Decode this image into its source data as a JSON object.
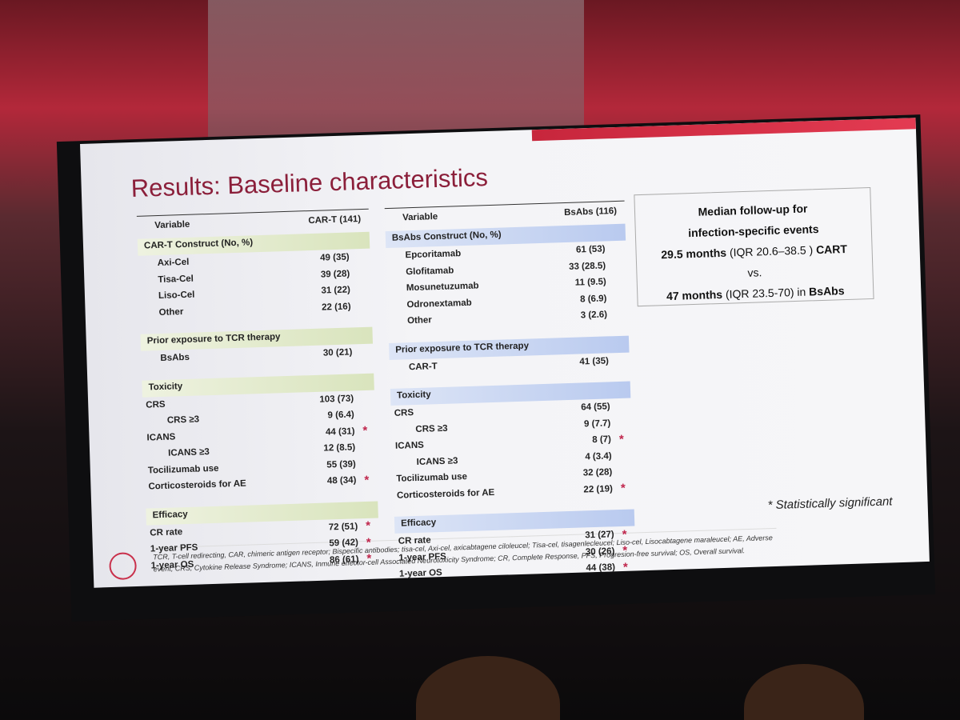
{
  "title": "Results: Baseline characteristics",
  "cart_table": {
    "header": {
      "variable": "Variable",
      "group": "CAR-T (141)"
    },
    "sections": [
      {
        "heading": "CAR-T Construct (No, %)",
        "rows": [
          {
            "label": "Axi-Cel",
            "value": "49 (35)"
          },
          {
            "label": "Tisa-Cel",
            "value": "39 (28)"
          },
          {
            "label": "Liso-Cel",
            "value": "31 (22)"
          },
          {
            "label": "Other",
            "value": "22 (16)"
          }
        ]
      },
      {
        "heading": "Prior exposure to TCR therapy",
        "rows": [
          {
            "label": "BsAbs",
            "value": "30 (21)"
          }
        ]
      },
      {
        "heading": "Toxicity",
        "rows": [
          {
            "label": "CRS",
            "value": "103 (73)",
            "sub": [
              {
                "label": "CRS ≥3",
                "value": "9 (6.4)"
              }
            ]
          },
          {
            "label": "ICANS",
            "value": "44 (31)",
            "mark": "*",
            "sub": [
              {
                "label": "ICANS ≥3",
                "value": "12 (8.5)"
              }
            ]
          },
          {
            "label": "Tocilizumab use",
            "value": "55 (39)"
          },
          {
            "label": "Corticosteroids for AE",
            "value": "48 (34)",
            "mark": "*"
          }
        ]
      },
      {
        "heading": "Efficacy",
        "rows": [
          {
            "label": "CR rate",
            "value": "72 (51)",
            "mark": "*"
          },
          {
            "label": "1-year PFS",
            "value": "59 (42)",
            "mark": "*"
          },
          {
            "label": "1-year OS",
            "value": "86 (61)",
            "mark": "*"
          }
        ]
      }
    ]
  },
  "bsabs_table": {
    "header": {
      "variable": "Variable",
      "group": "BsAbs (116)"
    },
    "sections": [
      {
        "heading": "BsAbs Construct (No, %)",
        "rows": [
          {
            "label": "Epcoritamab",
            "value": "61 (53)"
          },
          {
            "label": "Glofitamab",
            "value": "33 (28.5)"
          },
          {
            "label": "Mosunetuzumab",
            "value": "11 (9.5)"
          },
          {
            "label": "Odronextamab",
            "value": "8 (6.9)"
          },
          {
            "label": "Other",
            "value": "3 (2.6)"
          }
        ]
      },
      {
        "heading": "Prior exposure to TCR therapy",
        "rows": [
          {
            "label": "CAR-T",
            "value": "41 (35)"
          }
        ]
      },
      {
        "heading": "Toxicity",
        "rows": [
          {
            "label": "CRS",
            "value": "64 (55)",
            "sub": [
              {
                "label": "CRS ≥3",
                "value": "9 (7.7)"
              }
            ]
          },
          {
            "label": "ICANS",
            "value": "8 (7)",
            "mark": "*",
            "sub": [
              {
                "label": "ICANS ≥3",
                "value": "4 (3.4)"
              }
            ]
          },
          {
            "label": "Tocilizumab use",
            "value": "32 (28)"
          },
          {
            "label": "Corticosteroids for AE",
            "value": "22 (19)",
            "mark": "*"
          }
        ]
      },
      {
        "heading": "Efficacy",
        "rows": [
          {
            "label": "CR rate",
            "value": "31 (27)",
            "mark": "*"
          },
          {
            "label": "1-year PFS",
            "value": "30 (26)",
            "mark": "*"
          },
          {
            "label": "1-year OS",
            "value": "44 (38)",
            "mark": "*"
          }
        ]
      }
    ]
  },
  "followup_box": {
    "lines": [
      [
        {
          "text": "Median follow-up for",
          "bold": true
        }
      ],
      [
        {
          "text": "infection-specific events",
          "bold": true
        }
      ],
      [
        {
          "text": "29.5 months",
          "bold": true
        },
        {
          "text": " (IQR 20.6–38.5 ) "
        },
        {
          "text": "CART",
          "bold": true
        }
      ],
      [
        {
          "text": "vs."
        }
      ],
      [
        {
          "text": "47 months",
          "bold": true
        },
        {
          "text": " (IQR 23.5-70) in "
        },
        {
          "text": "BsAbs",
          "bold": true
        }
      ]
    ]
  },
  "significance_note": "* Statistically significant",
  "footnote": "TCR, T-cell redirecting, CAR, chimeric antigen receptor; Bispecific antibodies; tisa-cel,  Axi-cel, axicabtagene ciloleucel; Tisa-cel, tisagenlecleucel; Liso-cel, Lisocabtagene maraleucel; AE, Adverse event; CRS, Cytokine Release Syndrome; ICANS, Inmune effector-cell Associated Neurotoxicity Syndrome; CR, Complete Response, PFS, Progresion-free survival; OS, Overall survival."
}
